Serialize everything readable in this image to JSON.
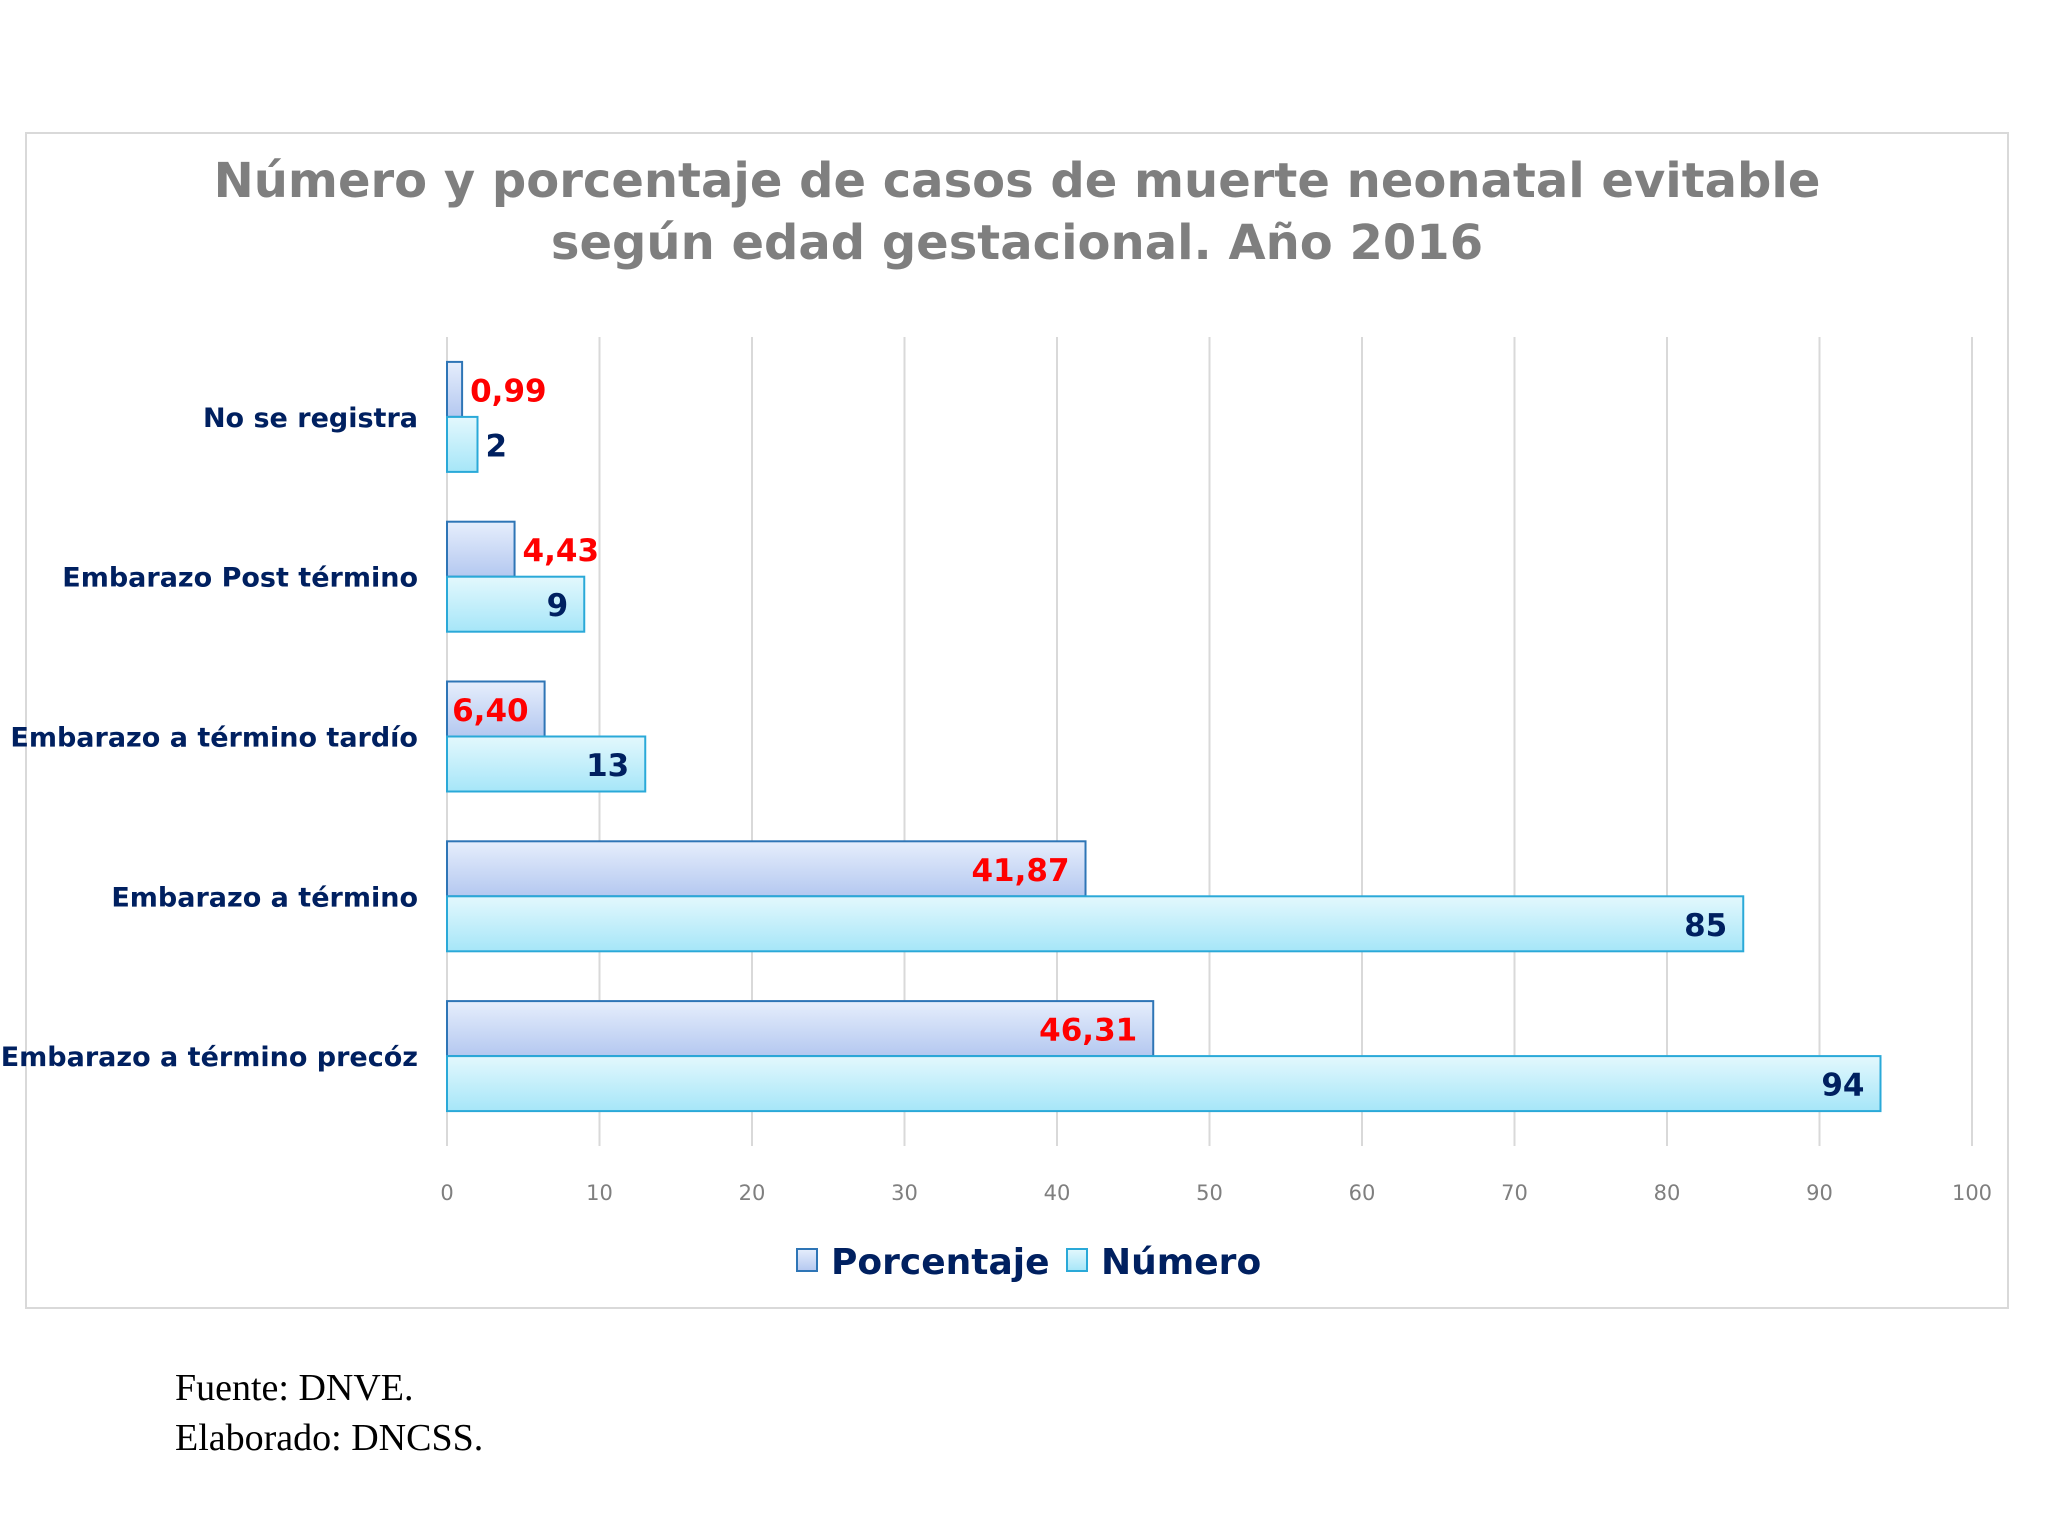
{
  "chart_data": {
    "type": "bar",
    "orientation": "horizontal",
    "title_lines": [
      "Número y porcentaje de casos de muerte neonatal evitable",
      "según edad gestacional. Año 2016"
    ],
    "categories": [
      "No se registra",
      "Embarazo Post término",
      "Embarazo a término tardío",
      "Embarazo a término",
      "Embarazo a término precóz"
    ],
    "series": [
      {
        "name": "Porcentaje",
        "values": [
          0.99,
          4.43,
          6.4,
          41.87,
          46.31
        ],
        "labels": [
          "0,99",
          "4,43",
          "6,40",
          "41,87",
          "46,31"
        ],
        "color": "#c9d9f5",
        "border": "#2e75b6",
        "label_color": "#ff0000"
      },
      {
        "name": "Número",
        "values": [
          2,
          9,
          13,
          85,
          94
        ],
        "labels": [
          "2",
          "9",
          "13",
          "85",
          "94"
        ],
        "color": "#bdeefa",
        "border": "#2aa9d8",
        "label_color": "#002060"
      }
    ],
    "xlim": [
      0,
      100
    ],
    "xticks": [
      "0",
      "10",
      "20",
      "30",
      "40",
      "50",
      "60",
      "70",
      "80",
      "90",
      "100"
    ],
    "grid": true,
    "legend": "bottom"
  },
  "footer": {
    "source": "Fuente: DNVE.",
    "elaborated": "Elaborado: DNCSS."
  }
}
